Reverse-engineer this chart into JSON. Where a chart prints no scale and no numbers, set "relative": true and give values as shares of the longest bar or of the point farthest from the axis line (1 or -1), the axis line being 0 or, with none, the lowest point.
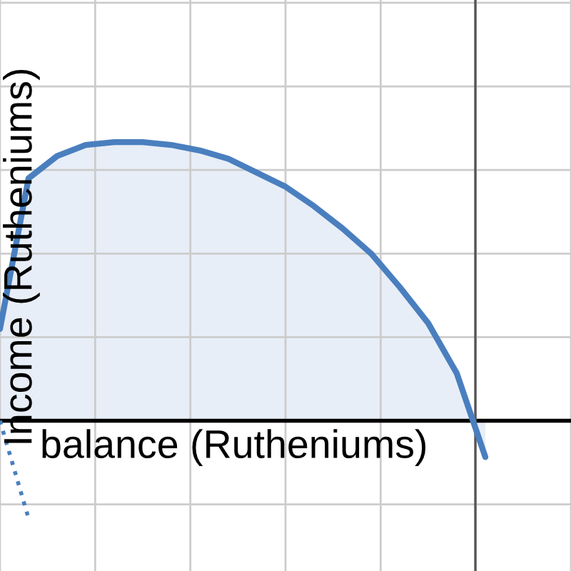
{
  "chart_data": {
    "type": "area",
    "relative": true,
    "xlabel": "balance (Rutheniums)",
    "ylabel": "Income (Rutheniums)",
    "categories": [
      null,
      null,
      null,
      null,
      null,
      null,
      null,
      null,
      null,
      null,
      null,
      null,
      null,
      null,
      null,
      null,
      null,
      null,
      null,
      null,
      null
    ],
    "series": [
      {
        "color": "#4a7fbf",
        "values": [
          0.33,
          0.87,
          0.95,
          0.99,
          1.0,
          1.0,
          0.99,
          0.97,
          0.94,
          0.89,
          0.84,
          0.77,
          0.69,
          0.6,
          0.48,
          0.35,
          0.17,
          -0.13,
          null,
          null,
          null
        ]
      },
      {
        "type": "line",
        "line_style": "dotted",
        "color": "#4a7fbf",
        "values": [
          0.0,
          -0.35,
          null,
          null,
          null,
          null,
          null,
          null,
          null,
          null,
          null,
          null,
          null,
          null,
          null,
          null,
          null,
          null,
          null,
          null,
          null
        ]
      }
    ],
    "grid": true
  }
}
